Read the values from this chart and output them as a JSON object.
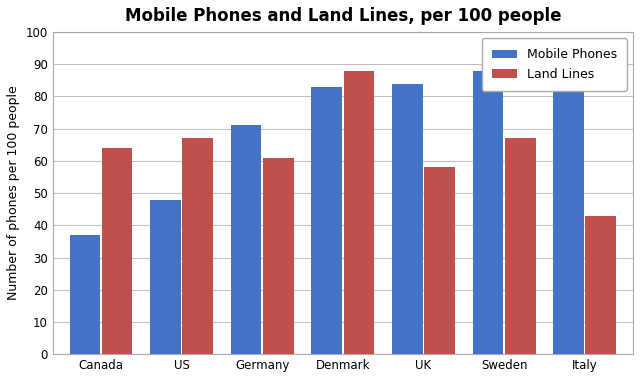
{
  "title": "Mobile Phones and Land Lines, per 100 people",
  "ylabel": "Number of phones per 100 people",
  "categories": [
    "Canada",
    "US",
    "Germany",
    "Denmark",
    "UK",
    "Sweden",
    "Italy"
  ],
  "mobile_phones": [
    37,
    48,
    71,
    83,
    84,
    88,
    90
  ],
  "land_lines": [
    64,
    67,
    61,
    88,
    58,
    67,
    43
  ],
  "mobile_color": "#4472C4",
  "landline_color": "#C0504D",
  "legend_labels": [
    "Mobile Phones",
    "Land Lines"
  ],
  "ylim": [
    0,
    100
  ],
  "yticks": [
    0,
    10,
    20,
    30,
    40,
    50,
    60,
    70,
    80,
    90,
    100
  ],
  "bar_width": 0.38,
  "background_color": "#FFFFFF",
  "plot_bg_color": "#FFFFFF",
  "grid_color": "#C0C0C0",
  "title_fontsize": 12,
  "axis_fontsize": 9,
  "tick_fontsize": 8.5,
  "legend_fontsize": 9
}
